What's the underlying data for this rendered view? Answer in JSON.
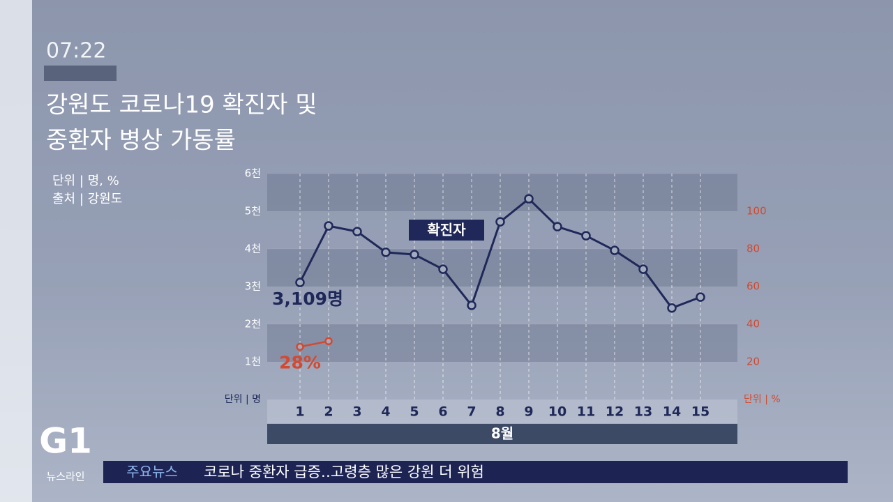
{
  "screen": {
    "time": "07:22",
    "title_lines": [
      "강원도 코로나19 확진자 및",
      "중환자 병상 가동률"
    ],
    "notes": [
      "단위 | 명, %",
      "출처 | 강원도"
    ],
    "logo": "G1",
    "program": "뉴스라인",
    "ticker_label": "주요뉴스",
    "ticker_text": "코로나 중환자 급증‥고령층 많은 강원 더 위험"
  },
  "chart_data": {
    "type": "line",
    "categories": [
      "1",
      "2",
      "3",
      "4",
      "5",
      "6",
      "7",
      "8",
      "9",
      "10",
      "11",
      "12",
      "13",
      "14",
      "15"
    ],
    "x_label": "8월",
    "y_unit_label": "단위 | 명",
    "y2_unit_label": "단위 | %",
    "ylim": [
      0,
      6000
    ],
    "yticks": [
      {
        "value": 1000,
        "label": "1천"
      },
      {
        "value": 2000,
        "label": "2천"
      },
      {
        "value": 3000,
        "label": "3천"
      },
      {
        "value": 4000,
        "label": "4천"
      },
      {
        "value": 5000,
        "label": "5천"
      },
      {
        "value": 6000,
        "label": "6천"
      }
    ],
    "y2lim": [
      0,
      120
    ],
    "y2ticks": [
      20,
      40,
      60,
      80,
      100
    ],
    "grid": true,
    "series": [
      {
        "name": "확진자",
        "color": "#1f2858",
        "values": [
          3109,
          4610,
          4460,
          3910,
          3850,
          3460,
          2500,
          4720,
          5330,
          4590,
          4350,
          3960,
          3460,
          2430,
          2720
        ],
        "value_labels": [
          "3,109명",
          null,
          null,
          null,
          null,
          null,
          null,
          null,
          null,
          null,
          null,
          null,
          null,
          null,
          null
        ]
      },
      {
        "color": "#d4492f",
        "axis": "y2",
        "values": [
          28,
          31,
          null,
          null,
          null,
          null,
          null,
          null,
          null,
          null,
          null,
          null,
          null,
          null,
          null
        ],
        "value_labels": [
          "28%",
          null,
          null,
          null,
          null,
          null,
          null,
          null,
          null,
          null,
          null,
          null,
          null,
          null,
          null
        ]
      }
    ]
  }
}
